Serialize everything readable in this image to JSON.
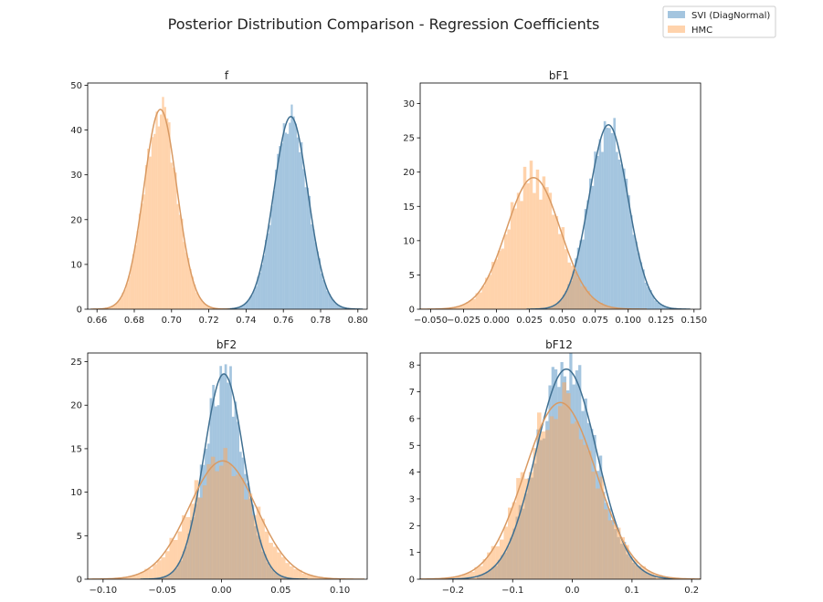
{
  "figure": {
    "title": "Posterior Distribution Comparison - Regression Coefficients"
  },
  "legend": {
    "placement": "top-right",
    "entries": [
      {
        "label": "SVI (DiagNormal)",
        "color": "#4a8cc0"
      },
      {
        "label": "HMC",
        "color": "#ffa85a"
      }
    ]
  },
  "colors": {
    "svi_fill": "#4a8cc0",
    "hmc_fill": "#ffa85a",
    "svi_line": "#3f6f91",
    "hmc_line": "#d99a63",
    "overlap_fill": "#b8a088"
  },
  "chart_data": [
    {
      "type": "histogram-kde",
      "title": "f",
      "xlim": [
        0.655,
        0.805
      ],
      "ylim": [
        0,
        50.5
      ],
      "xticks": [
        0.66,
        0.68,
        0.7,
        0.72,
        0.74,
        0.76,
        0.78,
        0.8
      ],
      "xtick_labels": [
        "0.66",
        "0.68",
        "0.70",
        "0.72",
        "0.74",
        "0.76",
        "0.78",
        "0.80"
      ],
      "yticks": [
        0,
        10,
        20,
        30,
        40,
        50
      ],
      "ytick_labels": [
        "0",
        "10",
        "20",
        "30",
        "40",
        "50"
      ],
      "series": [
        {
          "name": "HMC",
          "mean": 0.694,
          "sd": 0.0089,
          "peak": 44.6,
          "noise": 0.09,
          "seed": 11,
          "bins": 60,
          "range": [
            0.662,
            0.73
          ]
        },
        {
          "name": "SVI (DiagNormal)",
          "mean": 0.764,
          "sd": 0.0092,
          "peak": 43.0,
          "noise": 0.09,
          "seed": 23,
          "bins": 60,
          "range": [
            0.732,
            0.796
          ]
        }
      ]
    },
    {
      "type": "histogram-kde",
      "title": "bF1",
      "xlim": [
        -0.058,
        0.155
      ],
      "ylim": [
        0,
        33
      ],
      "xticks": [
        -0.05,
        -0.025,
        0.0,
        0.025,
        0.05,
        0.075,
        0.1,
        0.125,
        0.15
      ],
      "xtick_labels": [
        "−0.050",
        "−0.025",
        "0.000",
        "0.025",
        "0.050",
        "0.075",
        "0.100",
        "0.125",
        "0.150"
      ],
      "yticks": [
        0,
        5,
        10,
        15,
        20,
        25,
        30
      ],
      "ytick_labels": [
        "0",
        "5",
        "10",
        "15",
        "20",
        "25",
        "30"
      ],
      "series": [
        {
          "name": "HMC",
          "mean": 0.028,
          "sd": 0.0205,
          "peak": 19.2,
          "noise": 0.14,
          "seed": 37,
          "bins": 60,
          "range": [
            -0.045,
            0.1
          ]
        },
        {
          "name": "SVI (DiagNormal)",
          "mean": 0.085,
          "sd": 0.0148,
          "peak": 26.9,
          "noise": 0.12,
          "seed": 41,
          "bins": 60,
          "range": [
            0.03,
            0.14
          ]
        }
      ]
    },
    {
      "type": "histogram-kde",
      "title": "bF2",
      "xlim": [
        -0.113,
        0.123
      ],
      "ylim": [
        0,
        26
      ],
      "xticks": [
        -0.1,
        -0.05,
        0.0,
        0.05,
        0.1
      ],
      "xtick_labels": [
        "−0.10",
        "−0.05",
        "0.00",
        "0.05",
        "0.10"
      ],
      "yticks": [
        0,
        5,
        10,
        15,
        20,
        25
      ],
      "ytick_labels": [
        "0",
        "5",
        "10",
        "15",
        "20",
        "25"
      ],
      "series": [
        {
          "name": "HMC",
          "mean": 0.001,
          "sd": 0.0285,
          "peak": 13.6,
          "noise": 0.16,
          "seed": 53,
          "bins": 60,
          "range": [
            -0.1,
            0.11
          ]
        },
        {
          "name": "SVI (DiagNormal)",
          "mean": 0.002,
          "sd": 0.0168,
          "peak": 23.6,
          "noise": 0.12,
          "seed": 67,
          "bins": 60,
          "range": [
            -0.06,
            0.065
          ]
        }
      ]
    },
    {
      "type": "histogram-kde",
      "title": "bF12",
      "xlim": [
        -0.255,
        0.215
      ],
      "ylim": [
        0,
        8.45
      ],
      "xticks": [
        -0.2,
        -0.1,
        0.0,
        0.1,
        0.2
      ],
      "xtick_labels": [
        "−0.2",
        "−0.1",
        "0.0",
        "0.1",
        "0.2"
      ],
      "yticks": [
        0,
        1,
        2,
        3,
        4,
        5,
        6,
        7,
        8
      ],
      "ytick_labels": [
        "0",
        "1",
        "2",
        "3",
        "4",
        "5",
        "6",
        "7",
        "8"
      ],
      "series": [
        {
          "name": "HMC",
          "mean": -0.02,
          "sd": 0.06,
          "peak": 6.6,
          "noise": 0.15,
          "seed": 79,
          "bins": 60,
          "range": [
            -0.22,
            0.2
          ]
        },
        {
          "name": "SVI (DiagNormal)",
          "mean": -0.01,
          "sd": 0.051,
          "peak": 7.85,
          "noise": 0.13,
          "seed": 83,
          "bins": 60,
          "range": [
            -0.16,
            0.14
          ]
        }
      ]
    }
  ]
}
